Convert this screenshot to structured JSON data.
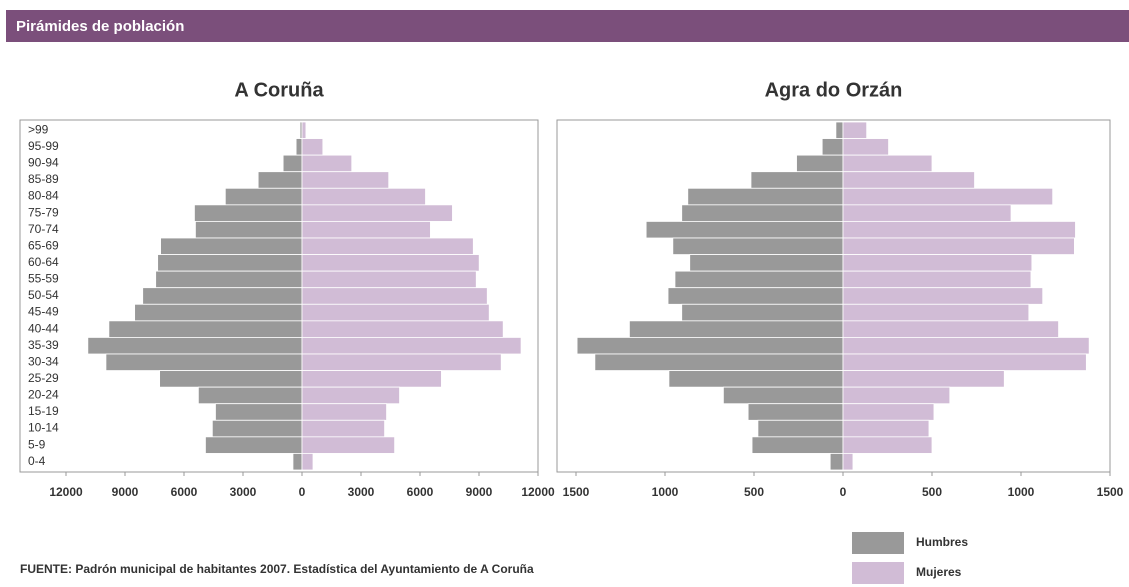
{
  "header": {
    "title": "Pirámides de población"
  },
  "source": "FUENTE: Padrón municipal de habitantes 2007. Estadística del Ayuntamiento de A Coruña",
  "chart_data": [
    {
      "type": "pyramid",
      "title": "A Coruña",
      "categories": [
        ">99",
        "95-99",
        "90-94",
        "85-89",
        "80-84",
        "75-79",
        "70-74",
        "65-69",
        "60-64",
        "55-59",
        "50-54",
        "45-49",
        "40-44",
        "35-39",
        "30-34",
        "25-29",
        "20-24",
        "15-19",
        "10-14",
        "5-9",
        "0-4"
      ],
      "series": [
        {
          "name": "Humbres",
          "color": "#999999",
          "values": [
            100,
            300,
            960,
            2230,
            3900,
            5470,
            5420,
            7190,
            7340,
            7440,
            8100,
            8510,
            9820,
            10890,
            9970,
            7240,
            5270,
            4400,
            4560,
            4910,
            460
          ]
        },
        {
          "name": "Mujeres",
          "color": "#d1bcd6",
          "values": [
            200,
            1060,
            2530,
            4410,
            6280,
            7650,
            6530,
            8710,
            9010,
            8860,
            9420,
            9520,
            10230,
            11140,
            10130,
            7090,
            4960,
            4300,
            4200,
            4710,
            560
          ]
        }
      ],
      "xlim": [
        0,
        12000
      ],
      "xticks": [
        0,
        3000,
        6000,
        9000,
        12000
      ]
    },
    {
      "type": "pyramid",
      "title": "Agra do Orzán",
      "series": [
        {
          "color": "#999999",
          "values": [
            40,
            117,
            261,
            517,
            872,
            906,
            1106,
            956,
            861,
            944,
            983,
            906,
            1200,
            1494,
            1394,
            978,
            672,
            533,
            478,
            511,
            72
          ]
        },
        {
          "color": "#d1bcd6",
          "values": [
            133,
            256,
            500,
            739,
            1178,
            944,
            1306,
            1300,
            1061,
            1056,
            1122,
            1044,
            1211,
            1383,
            1367,
            906,
            600,
            511,
            483,
            500,
            56
          ]
        }
      ],
      "xlim": [
        0,
        1500
      ],
      "xticks": [
        0,
        500,
        1000,
        1500
      ]
    }
  ]
}
